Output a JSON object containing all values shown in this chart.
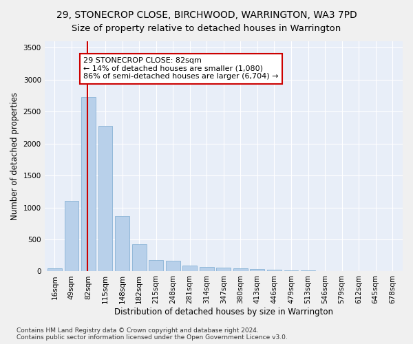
{
  "title": "29, STONECROP CLOSE, BIRCHWOOD, WARRINGTON, WA3 7PD",
  "subtitle": "Size of property relative to detached houses in Warrington",
  "xlabel": "Distribution of detached houses by size in Warrington",
  "ylabel": "Number of detached properties",
  "categories": [
    "16sqm",
    "49sqm",
    "82sqm",
    "115sqm",
    "148sqm",
    "182sqm",
    "215sqm",
    "248sqm",
    "281sqm",
    "314sqm",
    "347sqm",
    "380sqm",
    "413sqm",
    "446sqm",
    "479sqm",
    "513sqm",
    "546sqm",
    "579sqm",
    "612sqm",
    "645sqm",
    "678sqm"
  ],
  "values": [
    50,
    1100,
    2730,
    2280,
    870,
    430,
    175,
    165,
    95,
    65,
    55,
    45,
    35,
    25,
    20,
    15,
    10,
    8,
    5,
    5,
    3
  ],
  "bar_color": "#b8d0ea",
  "bar_edge_color": "#7aaad0",
  "highlight_index": 2,
  "highlight_line_color": "#cc0000",
  "annotation_text": "29 STONECROP CLOSE: 82sqm\n← 14% of detached houses are smaller (1,080)\n86% of semi-detached houses are larger (6,704) →",
  "annotation_box_color": "#ffffff",
  "annotation_box_edge": "#cc0000",
  "ylim": [
    0,
    3600
  ],
  "yticks": [
    0,
    500,
    1000,
    1500,
    2000,
    2500,
    3000,
    3500
  ],
  "footnote": "Contains HM Land Registry data © Crown copyright and database right 2024.\nContains public sector information licensed under the Open Government Licence v3.0.",
  "bg_color": "#e8eef8",
  "fig_color": "#f0f0f0",
  "grid_color": "#ffffff",
  "title_fontsize": 10,
  "subtitle_fontsize": 9.5,
  "xlabel_fontsize": 8.5,
  "ylabel_fontsize": 8.5,
  "tick_fontsize": 7.5,
  "annot_fontsize": 8,
  "footnote_fontsize": 6.5
}
